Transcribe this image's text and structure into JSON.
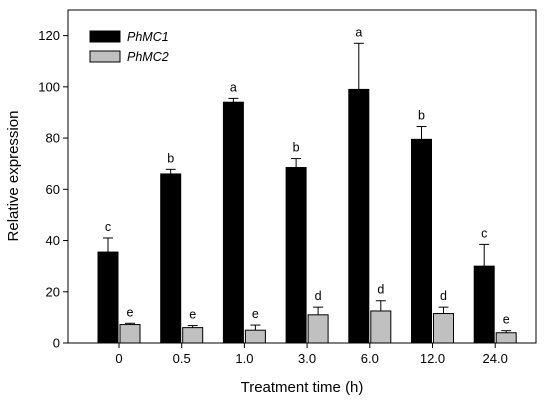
{
  "chart_data": {
    "type": "bar",
    "categories": [
      "0",
      "0.5",
      "1.0",
      "3.0",
      "6.0",
      "12.0",
      "24.0"
    ],
    "series": [
      {
        "name": "PhMC1",
        "color": "#000000",
        "values": [
          35.5,
          66,
          94,
          68.5,
          99,
          79.5,
          30
        ],
        "errors": [
          5.5,
          1.8,
          1.5,
          3.5,
          18,
          5,
          8.5
        ],
        "letters": [
          "c",
          "b",
          "a",
          "b",
          "a",
          "b",
          "c"
        ]
      },
      {
        "name": "PhMC2",
        "color": "#c0c0c0",
        "values": [
          7.2,
          6,
          5,
          11,
          12.5,
          11.5,
          4
        ],
        "errors": [
          0.5,
          0.8,
          2,
          3,
          4,
          2.5,
          0.8
        ],
        "letters": [
          "e",
          "e",
          "e",
          "d",
          "d",
          "d",
          "e"
        ]
      }
    ],
    "xlabel": "Treatment time (h)",
    "ylabel": "Relative expression",
    "ylim": [
      0,
      130
    ],
    "yticks": [
      0,
      20,
      40,
      60,
      80,
      100,
      120
    ],
    "error_bars": "upper",
    "legend_position": "top-left",
    "grid": false
  }
}
